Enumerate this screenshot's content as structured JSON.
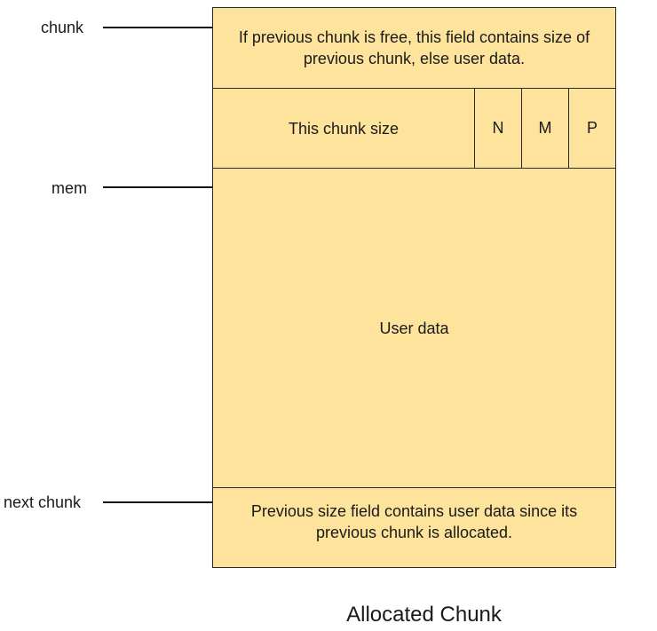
{
  "pointers": {
    "chunk": "chunk",
    "mem": "mem",
    "next_chunk": "next chunk"
  },
  "rows": {
    "prev_size": "If previous chunk is free, this field contains size of previous chunk, else user data.",
    "this_size": "This chunk size",
    "flags": [
      "N",
      "M",
      "P"
    ],
    "user_data": "User data",
    "next_prev_size": "Previous size field contains user data since its previous chunk is allocated."
  },
  "caption": "Allocated Chunk",
  "colors": {
    "fill": "#fde39b",
    "stroke": "#2a2a2a"
  }
}
